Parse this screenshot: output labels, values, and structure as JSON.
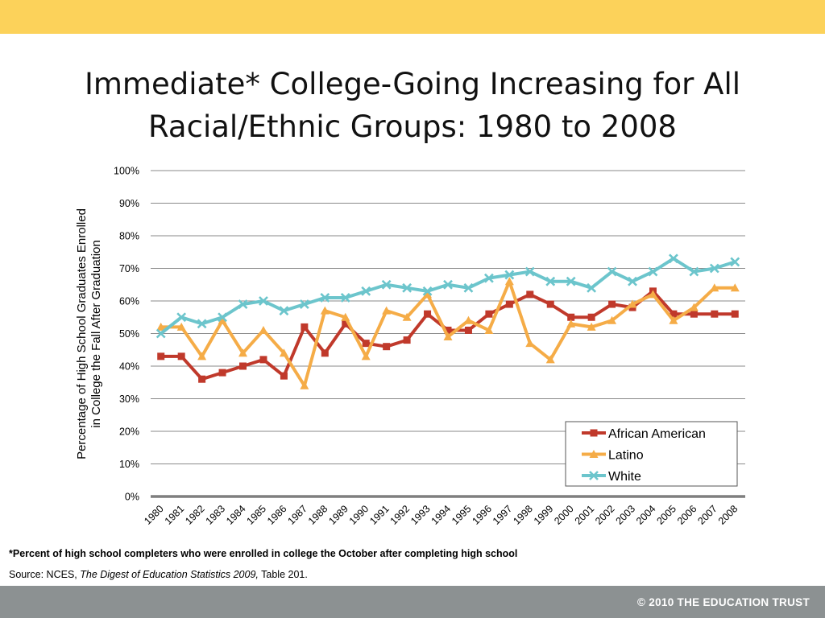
{
  "slide": {
    "title_line1": "Immediate* College-Going Increasing for All",
    "title_line2": "Racial/Ethnic Groups: 1980 to 2008",
    "footnote": "*Percent of high school completers who were enrolled in college the October after completing high school",
    "source_prefix": "Source: NCES, ",
    "source_title": "The Digest of Education Statistics 2009,",
    "source_suffix": " Table 201.",
    "copyright": "© 2010 THE EDUCATION TRUST",
    "colors": {
      "top_bar": "#fcd25a",
      "bottom_bar": "#8c9192"
    }
  },
  "chart_data": {
    "type": "line",
    "ylabel": "Percentage of High School Graduates Enrolled in College the Fall After Graduation",
    "ylabel_line1": "Percentage of High School Graduates Enrolled",
    "ylabel_line2": "in College the Fall After Graduation",
    "ylim": [
      0,
      100
    ],
    "yticks": [
      "0%",
      "10%",
      "20%",
      "30%",
      "40%",
      "50%",
      "60%",
      "70%",
      "80%",
      "90%",
      "100%"
    ],
    "categories": [
      "1980",
      "1981",
      "1982",
      "1983",
      "1984",
      "1985",
      "1986",
      "1987",
      "1988",
      "1989",
      "1990",
      "1991",
      "1992",
      "1993",
      "1994",
      "1995",
      "1996",
      "1997",
      "1998",
      "1999",
      "2000",
      "2001",
      "2002",
      "2003",
      "2004",
      "2005",
      "2006",
      "2007",
      "2008"
    ],
    "grid": true,
    "legend_position": "bottom-right",
    "series": [
      {
        "name": "African American",
        "color": "#c0392b",
        "marker": "square",
        "values": [
          43,
          43,
          36,
          38,
          40,
          42,
          37,
          52,
          44,
          53,
          47,
          46,
          48,
          56,
          51,
          51,
          56,
          59,
          62,
          59,
          55,
          55,
          59,
          58,
          63,
          56,
          56,
          56,
          56
        ]
      },
      {
        "name": "Latino",
        "color": "#f5ac47",
        "marker": "triangle",
        "values": [
          52,
          52,
          43,
          54,
          44,
          51,
          44,
          34,
          57,
          55,
          43,
          57,
          55,
          62,
          49,
          54,
          51,
          66,
          47,
          42,
          53,
          52,
          54,
          59,
          62,
          54,
          58,
          64,
          64
        ]
      },
      {
        "name": "White",
        "color": "#6cc5cc",
        "marker": "x",
        "values": [
          50,
          55,
          53,
          55,
          59,
          60,
          57,
          59,
          61,
          61,
          63,
          65,
          64,
          63,
          65,
          64,
          67,
          68,
          69,
          66,
          66,
          64,
          69,
          66,
          69,
          73,
          69,
          70,
          72
        ]
      }
    ]
  }
}
